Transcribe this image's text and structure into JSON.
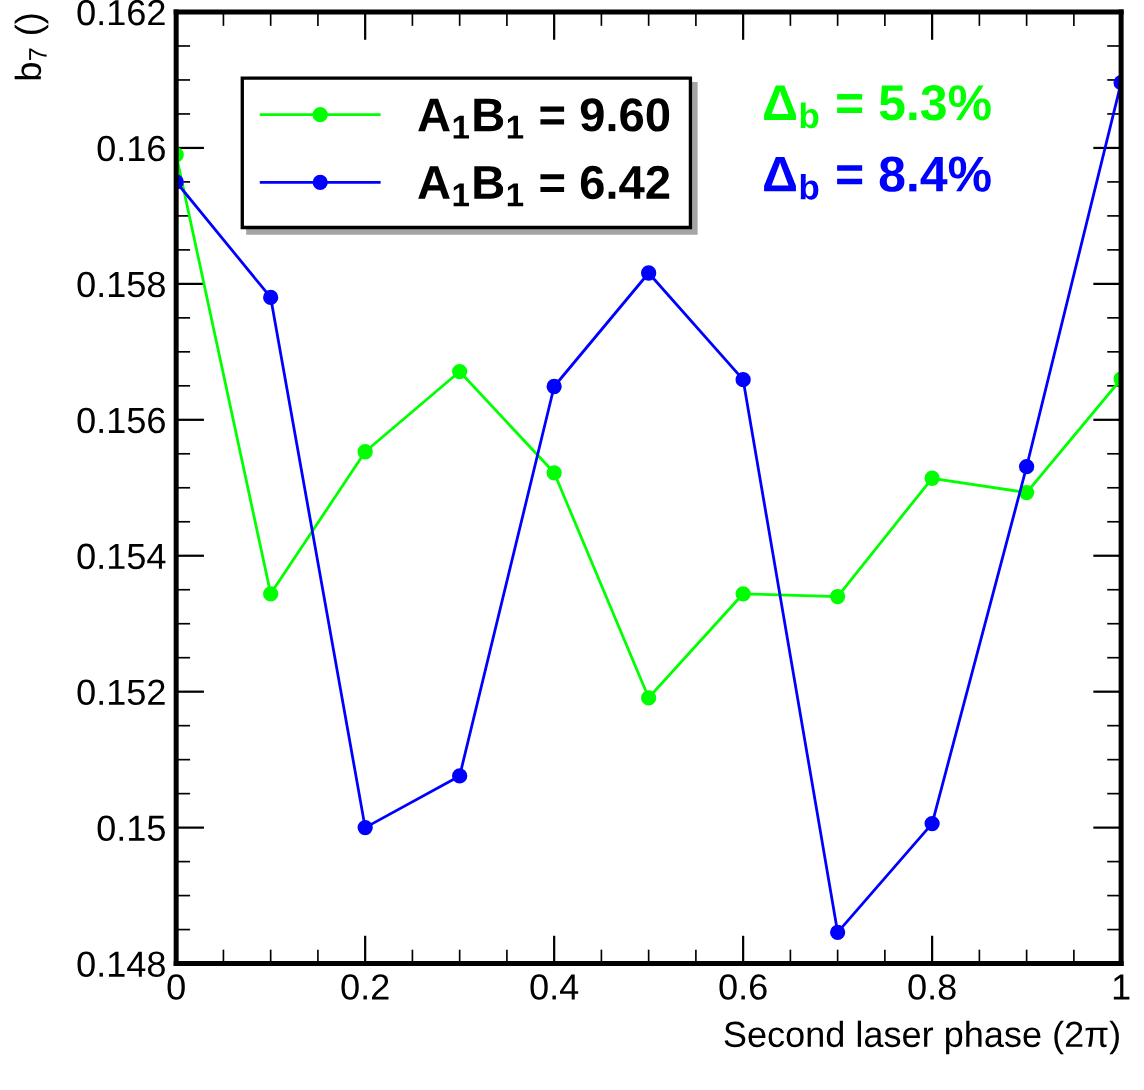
{
  "chart_data": {
    "type": "line",
    "xlabel": "Second laser phase (2π)",
    "ylabel": "b$_{7}$ ()",
    "x": [
      0,
      0.1,
      0.2,
      0.3,
      0.4,
      0.5,
      0.6,
      0.7,
      0.8,
      0.9,
      1.0
    ],
    "series": [
      {
        "name": "A$_{1}$B$_{1}$ = 9.60",
        "color": "#00ff00",
        "values": [
          0.1599,
          0.15344,
          0.15553,
          0.15671,
          0.15522,
          0.15191,
          0.15344,
          0.1534,
          0.15514,
          0.15493,
          0.1566
        ]
      },
      {
        "name": "A$_{1}$B$_{1}$ = 6.42",
        "color": "#0000ff",
        "values": [
          0.1595,
          0.1578,
          0.15,
          0.15076,
          0.15649,
          0.15816,
          0.15659,
          0.14846,
          0.15006,
          0.15531,
          0.16096
        ]
      }
    ],
    "annotations": [
      "Δ$_{b}$ = 5.3%",
      "Δ$_{b}$ = 8.4%"
    ],
    "xlim": [
      0,
      1
    ],
    "xticks": [
      0,
      0.2,
      0.4,
      0.6,
      0.8,
      1
    ],
    "ylim": [
      0.148,
      0.162
    ],
    "yticks": [
      0.148,
      0.15,
      0.152,
      0.154,
      0.156,
      0.158,
      0.16,
      0.162
    ],
    "legend": "top left",
    "marker": "circle",
    "line_style": "solid",
    "grid": false
  }
}
